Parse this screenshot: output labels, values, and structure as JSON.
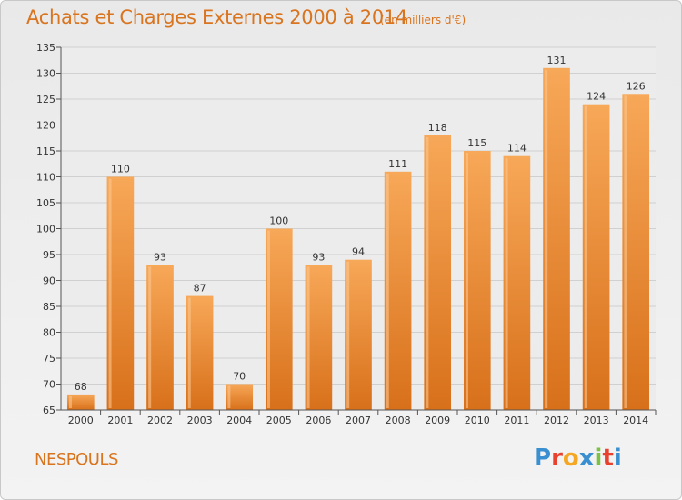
{
  "header": {
    "title": "Achats et Charges Externes 2000 à 2014",
    "subtitle": "(en milliers d'€)"
  },
  "footer": {
    "commune": "NESPOULS",
    "brand_letters": [
      "P",
      "r",
      "o",
      "x",
      "i",
      "t",
      "i"
    ],
    "brand_colors": [
      "#3a8fd1",
      "#e8412e",
      "#f5a623",
      "#3a8fd1",
      "#7cc242",
      "#e8412e",
      "#3a8fd1"
    ]
  },
  "colors": {
    "bar_top": "#f7a858",
    "bar_bottom": "#d8701a",
    "grid": "#d0d0d0",
    "accent": "#d9741f"
  },
  "chart_data": {
    "type": "bar",
    "title": "Achats et Charges Externes 2000 à 2014",
    "subtitle": "(en milliers d'€)",
    "categories": [
      "2000",
      "2001",
      "2002",
      "2003",
      "2004",
      "2005",
      "2006",
      "2007",
      "2008",
      "2009",
      "2010",
      "2011",
      "2012",
      "2013",
      "2014"
    ],
    "values": [
      68,
      110,
      93,
      87,
      70,
      100,
      93,
      94,
      111,
      118,
      115,
      114,
      131,
      124,
      126
    ],
    "ylim": [
      65,
      135
    ],
    "yticks": [
      65,
      70,
      75,
      80,
      85,
      90,
      95,
      100,
      105,
      110,
      115,
      120,
      125,
      130,
      135
    ],
    "grid": true,
    "xlabel": "",
    "ylabel": ""
  }
}
